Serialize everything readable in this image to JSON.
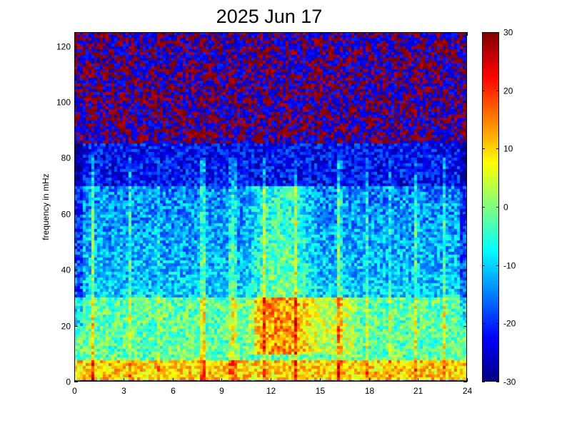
{
  "chart_data": {
    "type": "heatmap",
    "title": "2025 Jun 17",
    "xlabel": "",
    "ylabel": "frequency in mHz",
    "xlim": [
      0,
      24
    ],
    "ylim": [
      0,
      125
    ],
    "xticks": [
      0,
      3,
      6,
      9,
      12,
      15,
      18,
      21,
      24
    ],
    "yticks": [
      0,
      20,
      40,
      60,
      80,
      100,
      120
    ],
    "colorbar": {
      "range": [
        -30,
        30
      ],
      "ticks": [
        30,
        20,
        10,
        0,
        -10,
        -20,
        -30
      ],
      "colormap": "jet"
    },
    "grid": false,
    "description_values": {
      "low_band_0_8_mHz_dB": 8,
      "band_8_30_mHz_dB": -2,
      "band_30_70_mHz_dB": -10,
      "band_above_80_mHz_dB": 25,
      "enhanced_hours": [
        10.3,
        14.8
      ]
    },
    "colors": {
      "axis": "#000000",
      "background": "#ffffff"
    }
  }
}
